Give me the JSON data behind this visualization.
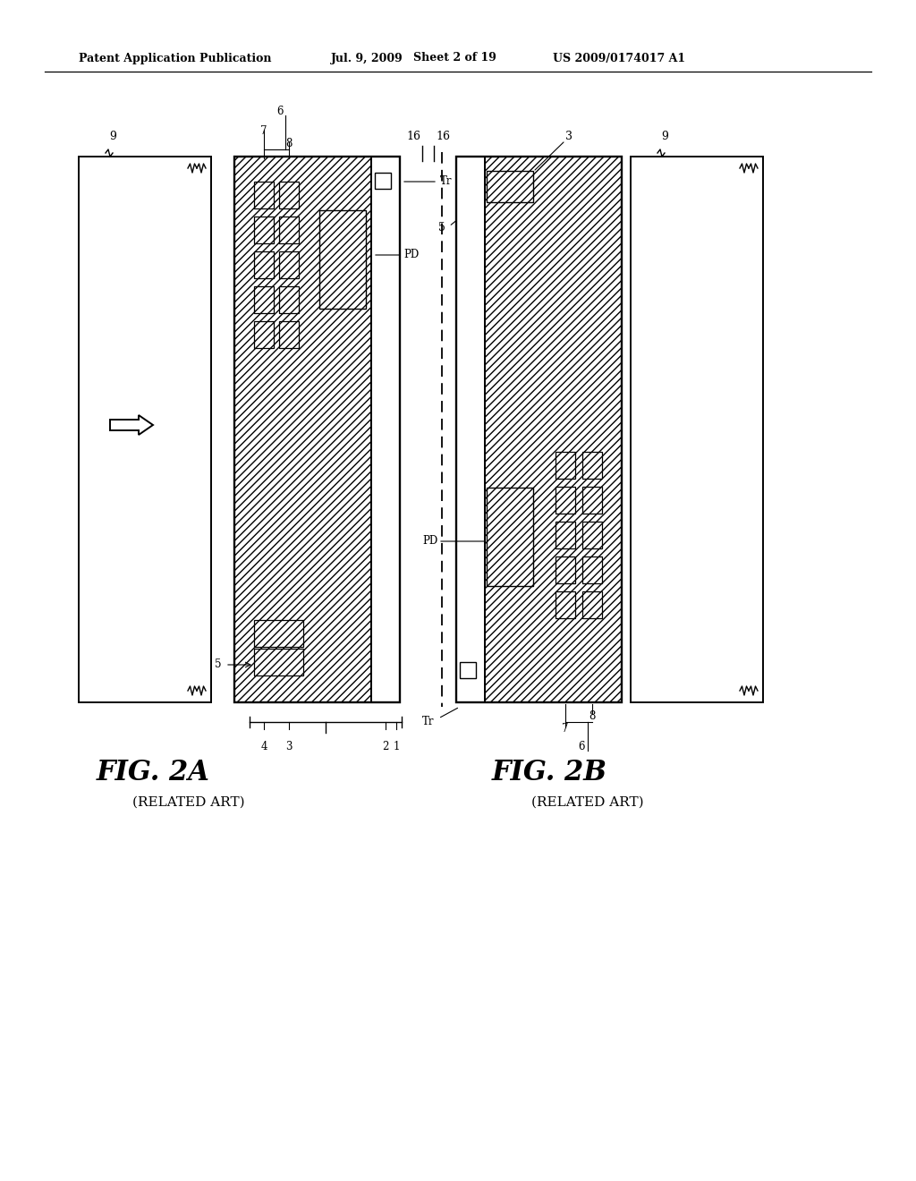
{
  "bg": "#ffffff",
  "bk": "#000000",
  "header1": "Patent Application Publication",
  "header2": "Jul. 9, 2009",
  "header3": "Sheet 2 of 19",
  "header4": "US 2009/0174017 A1",
  "fig2a": "FIG. 2A",
  "fig2a_sub": "(RELATED ART)",
  "fig2b": "FIG. 2B",
  "fig2b_sub": "(RELATED ART)",
  "lw": 1.4
}
